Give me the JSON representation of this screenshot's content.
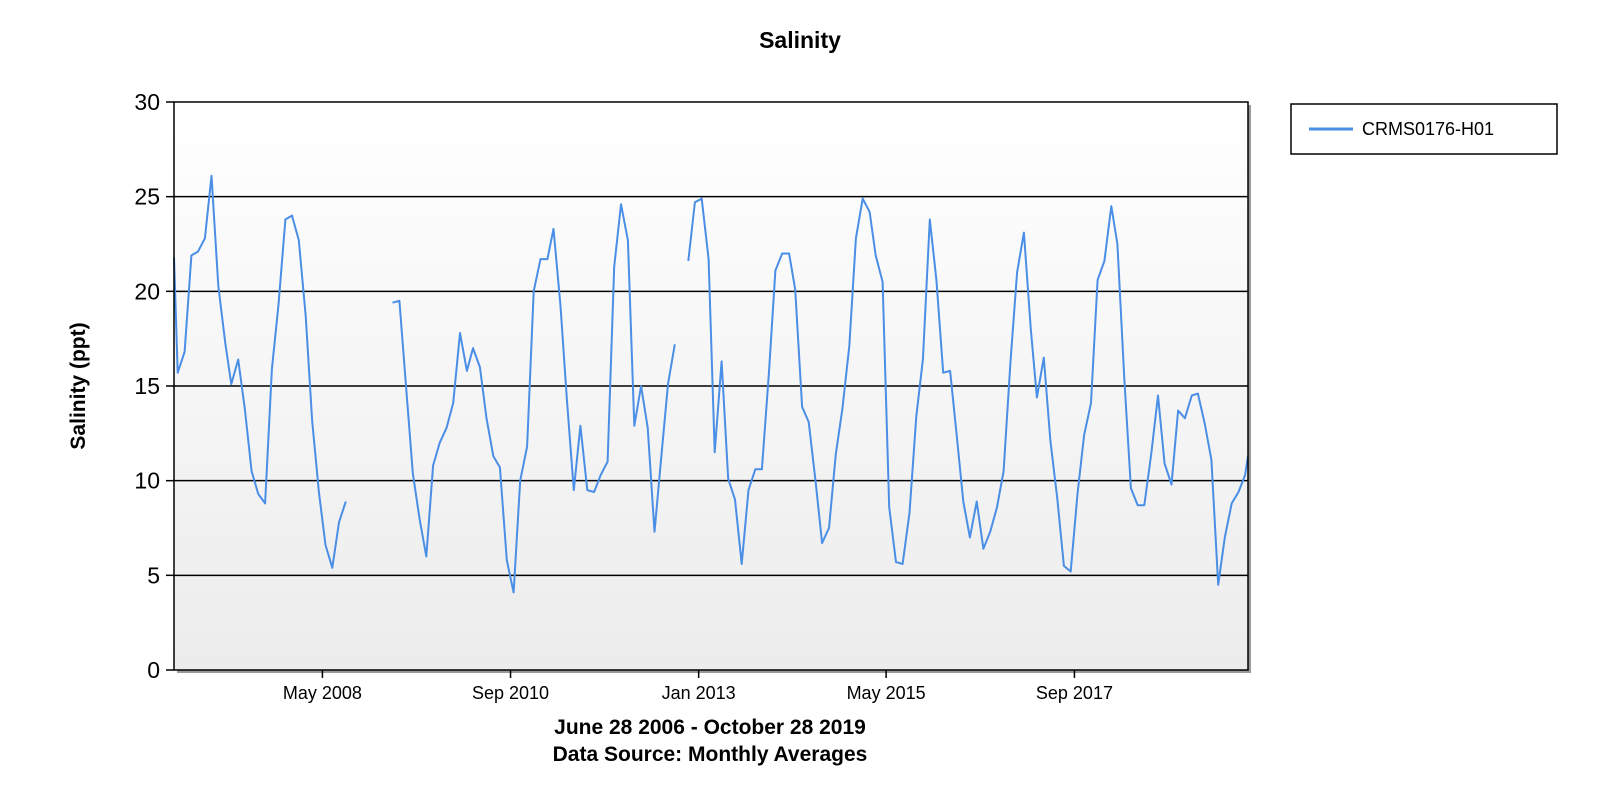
{
  "chart_data": {
    "type": "line",
    "title": "Salinity",
    "ylabel": "Salinity (ppt)",
    "xlabel_lines": [
      "June 28 2006 - October 28 2019",
      "Data Source: Monthly Averages"
    ],
    "ylim": [
      0,
      30
    ],
    "yticks": [
      0,
      5,
      10,
      15,
      20,
      25,
      30
    ],
    "xlim": [
      "2006-06-28",
      "2019-10-28"
    ],
    "xticks": [
      {
        "date": "2008-05-01",
        "label": "May 2008"
      },
      {
        "date": "2010-09-01",
        "label": "Sep 2010"
      },
      {
        "date": "2013-01-01",
        "label": "Jan 2013"
      },
      {
        "date": "2015-05-01",
        "label": "May 2015"
      },
      {
        "date": "2017-09-01",
        "label": "Sep 2017"
      }
    ],
    "grid": true,
    "legend_position": "top-right",
    "colors": {
      "series": "#4a8ee6",
      "plot_bg_top": "#ffffff",
      "plot_bg_bottom": "#ececec"
    },
    "series": [
      {
        "name": "CRMS0176-H01",
        "points": [
          [
            "2006-06",
            21.8
          ],
          [
            "2006-07",
            15.7
          ],
          [
            "2006-08",
            16.8
          ],
          [
            "2006-09",
            21.9
          ],
          [
            "2006-10",
            22.1
          ],
          [
            "2006-11",
            22.8
          ],
          [
            "2006-12",
            26.1
          ],
          [
            "2007-01",
            20.3
          ],
          [
            "2007-02",
            17.3
          ],
          [
            "2007-03",
            15.1
          ],
          [
            "2007-04",
            16.4
          ],
          [
            "2007-05",
            13.8
          ],
          [
            "2007-06",
            10.5
          ],
          [
            "2007-07",
            9.3
          ],
          [
            "2007-08",
            8.8
          ],
          [
            "2007-09",
            15.9
          ],
          [
            "2007-10",
            19.3
          ],
          [
            "2007-11",
            23.8
          ],
          [
            "2007-12",
            24.0
          ],
          [
            "2008-01",
            22.7
          ],
          [
            "2008-02",
            18.7
          ],
          [
            "2008-03",
            13.2
          ],
          [
            "2008-04",
            9.4
          ],
          [
            "2008-05",
            6.6
          ],
          [
            "2008-06",
            5.4
          ],
          [
            "2008-07",
            7.8
          ],
          [
            "2008-08",
            8.9
          ],
          [
            "2008-09",
            null
          ],
          [
            "2008-10",
            null
          ],
          [
            "2008-11",
            null
          ],
          [
            "2008-12",
            null
          ],
          [
            "2009-01",
            null
          ],
          [
            "2009-02",
            null
          ],
          [
            "2009-03",
            19.4
          ],
          [
            "2009-04",
            19.5
          ],
          [
            "2009-05",
            15.0
          ],
          [
            "2009-06",
            10.4
          ],
          [
            "2009-07",
            8.0
          ],
          [
            "2009-08",
            6.0
          ],
          [
            "2009-09",
            10.8
          ],
          [
            "2009-10",
            12.0
          ],
          [
            "2009-11",
            12.8
          ],
          [
            "2009-12",
            14.1
          ],
          [
            "2010-01",
            17.8
          ],
          [
            "2010-02",
            15.8
          ],
          [
            "2010-03",
            17.0
          ],
          [
            "2010-04",
            16.0
          ],
          [
            "2010-05",
            13.3
          ],
          [
            "2010-06",
            11.3
          ],
          [
            "2010-07",
            10.7
          ],
          [
            "2010-08",
            5.8
          ],
          [
            "2010-09",
            4.1
          ],
          [
            "2010-10",
            10.0
          ],
          [
            "2010-11",
            11.8
          ],
          [
            "2010-12",
            20.0
          ],
          [
            "2011-01",
            21.7
          ],
          [
            "2011-02",
            21.7
          ],
          [
            "2011-03",
            23.3
          ],
          [
            "2011-04",
            19.3
          ],
          [
            "2011-05",
            14.2
          ],
          [
            "2011-06",
            9.5
          ],
          [
            "2011-07",
            12.9
          ],
          [
            "2011-08",
            9.5
          ],
          [
            "2011-09",
            9.4
          ],
          [
            "2011-10",
            10.3
          ],
          [
            "2011-11",
            11.0
          ],
          [
            "2011-12",
            21.3
          ],
          [
            "2012-01",
            24.6
          ],
          [
            "2012-02",
            22.7
          ],
          [
            "2012-03",
            12.9
          ],
          [
            "2012-04",
            15.0
          ],
          [
            "2012-05",
            12.8
          ],
          [
            "2012-06",
            7.3
          ],
          [
            "2012-07",
            11.2
          ],
          [
            "2012-08",
            15.1
          ],
          [
            "2012-09",
            17.2
          ],
          [
            "2012-10",
            null
          ],
          [
            "2012-11",
            21.6
          ],
          [
            "2012-12",
            24.7
          ],
          [
            "2013-01",
            24.9
          ],
          [
            "2013-02",
            21.7
          ],
          [
            "2013-03",
            11.5
          ],
          [
            "2013-04",
            16.3
          ],
          [
            "2013-05",
            10.1
          ],
          [
            "2013-06",
            9.0
          ],
          [
            "2013-07",
            5.6
          ],
          [
            "2013-08",
            9.5
          ],
          [
            "2013-09",
            10.6
          ],
          [
            "2013-10",
            10.6
          ],
          [
            "2013-11",
            15.6
          ],
          [
            "2013-12",
            21.1
          ],
          [
            "2014-01",
            22.0
          ],
          [
            "2014-02",
            22.0
          ],
          [
            "2014-03",
            20.1
          ],
          [
            "2014-04",
            13.9
          ],
          [
            "2014-05",
            13.1
          ],
          [
            "2014-06",
            10.0
          ],
          [
            "2014-07",
            6.7
          ],
          [
            "2014-08",
            7.5
          ],
          [
            "2014-09",
            11.4
          ],
          [
            "2014-10",
            13.8
          ],
          [
            "2014-11",
            17.1
          ],
          [
            "2014-12",
            22.8
          ],
          [
            "2015-01",
            24.9
          ],
          [
            "2015-02",
            24.2
          ],
          [
            "2015-03",
            21.9
          ],
          [
            "2015-04",
            20.5
          ],
          [
            "2015-05",
            8.6
          ],
          [
            "2015-06",
            5.7
          ],
          [
            "2015-07",
            5.6
          ],
          [
            "2015-08",
            8.3
          ],
          [
            "2015-09",
            13.4
          ],
          [
            "2015-10",
            16.4
          ],
          [
            "2015-11",
            23.8
          ],
          [
            "2015-12",
            20.6
          ],
          [
            "2016-01",
            15.7
          ],
          [
            "2016-02",
            15.8
          ],
          [
            "2016-03",
            12.5
          ],
          [
            "2016-04",
            8.9
          ],
          [
            "2016-05",
            7.0
          ],
          [
            "2016-06",
            8.9
          ],
          [
            "2016-07",
            6.4
          ],
          [
            "2016-08",
            7.3
          ],
          [
            "2016-09",
            8.6
          ],
          [
            "2016-10",
            10.5
          ],
          [
            "2016-11",
            16.3
          ],
          [
            "2016-12",
            21.0
          ],
          [
            "2017-01",
            23.1
          ],
          [
            "2017-02",
            18.0
          ],
          [
            "2017-03",
            14.4
          ],
          [
            "2017-04",
            16.5
          ],
          [
            "2017-05",
            12.1
          ],
          [
            "2017-06",
            9.1
          ],
          [
            "2017-07",
            5.5
          ],
          [
            "2017-08",
            5.2
          ],
          [
            "2017-09",
            9.3
          ],
          [
            "2017-10",
            12.4
          ],
          [
            "2017-11",
            14.1
          ],
          [
            "2017-12",
            20.6
          ],
          [
            "2018-01",
            21.6
          ],
          [
            "2018-02",
            24.5
          ],
          [
            "2018-03",
            22.5
          ],
          [
            "2018-04",
            15.4
          ],
          [
            "2018-05",
            9.6
          ],
          [
            "2018-06",
            8.7
          ],
          [
            "2018-07",
            8.7
          ],
          [
            "2018-08",
            11.4
          ],
          [
            "2018-09",
            14.5
          ],
          [
            "2018-10",
            10.9
          ],
          [
            "2018-11",
            9.8
          ],
          [
            "2018-12",
            13.7
          ],
          [
            "2019-01",
            13.3
          ],
          [
            "2019-02",
            14.5
          ],
          [
            "2019-03",
            14.6
          ],
          [
            "2019-04",
            13.0
          ],
          [
            "2019-05",
            11.1
          ],
          [
            "2019-06",
            4.5
          ],
          [
            "2019-07",
            7.0
          ],
          [
            "2019-08",
            8.8
          ],
          [
            "2019-09",
            9.4
          ],
          [
            "2019-10",
            10.3
          ],
          [
            "2019-11",
            11.3
          ]
        ]
      }
    ]
  }
}
